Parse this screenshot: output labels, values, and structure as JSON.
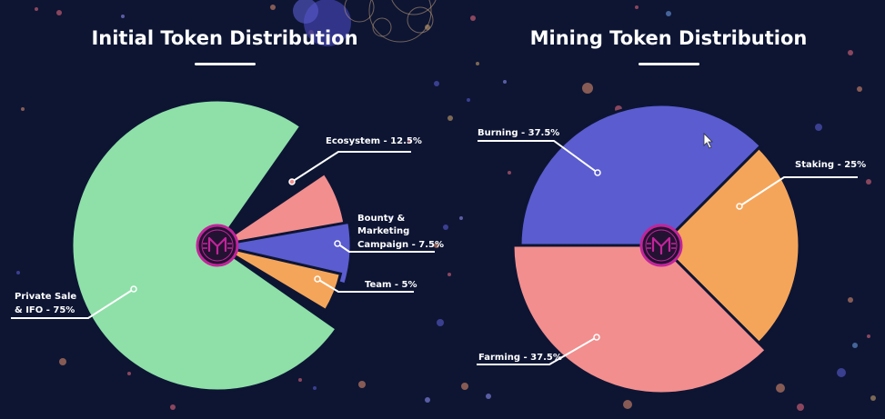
{
  "colors": {
    "background": "#0d1533",
    "green": "#8ee0a8",
    "salmon": "#f28e8e",
    "blue": "#5a5ccf",
    "orange": "#f5a55a",
    "logo_pink": "#c2249a",
    "logo_bg": "#241233"
  },
  "logo_icon": "mining-crest-icon",
  "chart_data": [
    {
      "type": "pie",
      "title": "Initial Token Distribution",
      "slices": [
        {
          "label": [
            "Private Sale",
            "& IFO - 75%"
          ],
          "value": 75,
          "color": "#8ee0a8"
        },
        {
          "label": [
            "Ecosystem - 12.5%"
          ],
          "value": 12.5,
          "color": "#f28e8e"
        },
        {
          "label": [
            "Bounty &",
            "Marketing",
            "Campaign - 7.5%"
          ],
          "value": 7.5,
          "color": "#5a5ccf"
        },
        {
          "label": [
            "Team - 5%"
          ],
          "value": 5,
          "color": "#f5a55a"
        }
      ]
    },
    {
      "type": "pie",
      "title": "Mining Token Distribution",
      "slices": [
        {
          "label": [
            "Burning - 37.5%"
          ],
          "value": 37.5,
          "color": "#5a5ccf"
        },
        {
          "label": [
            "Staking - 25%"
          ],
          "value": 25,
          "color": "#f5a55a"
        },
        {
          "label": [
            "Farming - 37.5%"
          ],
          "value": 37.5,
          "color": "#f28e8e"
        }
      ]
    }
  ]
}
